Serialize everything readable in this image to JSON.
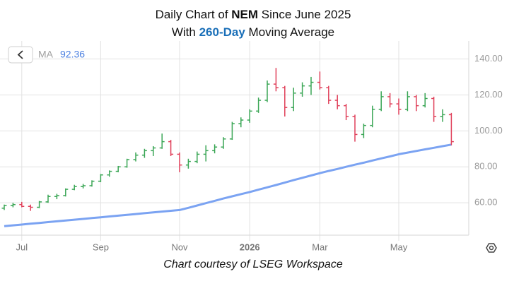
{
  "chart_data": {
    "type": "ohlc",
    "title_line1": [
      "Daily Chart of ",
      "NEM",
      " Since June 2025"
    ],
    "title_line2": [
      "With ",
      "260-Day",
      " Moving Average"
    ],
    "caption": "Chart courtesy of LSEG Workspace",
    "categories": [
      null,
      null,
      "Jul",
      null,
      null,
      null,
      null,
      null,
      null,
      null,
      null,
      "Sep",
      null,
      null,
      null,
      null,
      null,
      null,
      null,
      null,
      "Nov",
      null,
      null,
      null,
      null,
      null,
      null,
      null,
      "2026",
      null,
      null,
      null,
      null,
      null,
      null,
      null,
      "Mar",
      null,
      null,
      null,
      null,
      null,
      null,
      null,
      null,
      "May",
      null,
      null,
      null,
      null,
      null,
      null
    ],
    "open": [
      57,
      58.5,
      59,
      58,
      57.5,
      60.5,
      63.5,
      64,
      67.5,
      69,
      69.5,
      72,
      75.5,
      77.5,
      80,
      84,
      86.5,
      89,
      90.5,
      94,
      87,
      81,
      83,
      87,
      89,
      91,
      95.5,
      104,
      106,
      111,
      117,
      126,
      124,
      113,
      121,
      125,
      127,
      124,
      117,
      114,
      108,
      98,
      103,
      112,
      119,
      115,
      112,
      119,
      114,
      118,
      108,
      109
    ],
    "high": [
      59,
      60,
      60.5,
      59,
      61,
      64.5,
      65,
      68,
      70,
      70.5,
      72.5,
      76,
      78,
      80.5,
      84.5,
      88,
      90,
      91.5,
      98.5,
      95,
      88,
      84.5,
      88.5,
      92,
      92.5,
      96.5,
      105,
      107.5,
      112,
      118.5,
      128,
      135,
      125,
      124,
      127,
      130,
      133,
      125,
      120,
      115,
      109,
      104,
      114,
      122,
      121,
      118,
      122,
      120,
      121,
      119,
      112,
      110
    ],
    "low": [
      56,
      57.5,
      57.5,
      55.5,
      57,
      60,
      62,
      63.5,
      67,
      68,
      69,
      71.5,
      74.5,
      77,
      79.5,
      83,
      85,
      86,
      90,
      86,
      77,
      79,
      82,
      83,
      87.5,
      90,
      95,
      102,
      104.5,
      110,
      116,
      122,
      108,
      111,
      119,
      120,
      123,
      115,
      112,
      106,
      94,
      96,
      102,
      111,
      113,
      109,
      111,
      111,
      113,
      105,
      105,
      92
    ],
    "close": [
      58.5,
      59,
      58,
      57.5,
      60.5,
      63.5,
      64,
      67.5,
      69,
      69.5,
      72,
      75.5,
      77.5,
      80,
      84,
      86.5,
      89,
      90.5,
      94,
      87,
      81,
      83,
      87,
      89,
      91,
      95.5,
      104,
      106,
      111,
      117,
      126,
      124,
      113,
      121,
      125,
      127,
      124,
      117,
      114,
      108,
      98,
      103,
      112,
      119,
      115,
      112,
      119,
      114,
      118,
      108,
      109,
      94
    ],
    "up_color": "#3aa655",
    "down_color": "#e0405a",
    "ma": {
      "name": "MA",
      "color": "#7ba3f2",
      "values": [
        47,
        47.45,
        47.9,
        48.35,
        48.8,
        49.25,
        49.7,
        50.15,
        50.6,
        51.05,
        51.5,
        51.95,
        52.4,
        52.85,
        53.3,
        53.75,
        54.2,
        54.65,
        55.1,
        55.55,
        56,
        57.2,
        58.5,
        59.8,
        61.1,
        62.4,
        63.6,
        64.8,
        66,
        67.3,
        68.6,
        69.9,
        71.2,
        72.6,
        73.9,
        75.2,
        76.5,
        77.7,
        78.8,
        80,
        81.2,
        82.3,
        83.5,
        84.7,
        85.8,
        87,
        87.9,
        88.8,
        89.7,
        90.6,
        91.5,
        92.36
      ]
    },
    "ylim": [
      42,
      150
    ],
    "yticks": [
      {
        "value": 60,
        "label": "60.00"
      },
      {
        "value": 80,
        "label": "80.00"
      },
      {
        "value": 100,
        "label": "100.00"
      },
      {
        "value": 120,
        "label": "120.00"
      },
      {
        "value": 140,
        "label": "140.00"
      }
    ],
    "grid": true
  }
}
